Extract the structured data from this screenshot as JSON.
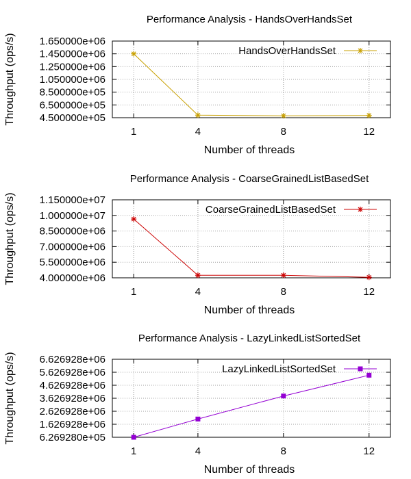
{
  "chart_data": [
    {
      "type": "line",
      "title": "Performance Analysis - HandsOverHandsSet",
      "xlabel": "Number of threads",
      "ylabel": "Throughput (ops/s)",
      "x": [
        1,
        4,
        8,
        12
      ],
      "x_tick_labels": [
        "1",
        "4",
        "8",
        "12"
      ],
      "y_tick_labels": [
        "1.650000e+06",
        "1.450000e+06",
        "1.250000e+06",
        "1.050000e+06",
        "8.500000e+05",
        "6.500000e+05",
        "4.500000e+05"
      ],
      "y_ticks": [
        1650000,
        1450000,
        1250000,
        1050000,
        850000,
        650000,
        450000
      ],
      "ylim": [
        450000,
        1650000
      ],
      "xlim": [
        0,
        13
      ],
      "grid": true,
      "legend_position": "top-right",
      "series": [
        {
          "name": "HandsOverHandsSet",
          "marker": "star",
          "color": "#c8a000",
          "values": [
            1450000,
            490000,
            480000,
            485000
          ]
        }
      ]
    },
    {
      "type": "line",
      "title": "Performance Analysis - CoarseGrainedListBasedSet",
      "xlabel": "Number of threads",
      "ylabel": "Throughput (ops/s)",
      "x": [
        1,
        4,
        8,
        12
      ],
      "x_tick_labels": [
        "1",
        "4",
        "8",
        "12"
      ],
      "y_tick_labels": [
        "1.150000e+07",
        "1.000000e+07",
        "8.500000e+06",
        "7.000000e+06",
        "5.500000e+06",
        "4.000000e+06"
      ],
      "y_ticks": [
        11500000,
        10000000,
        8500000,
        7000000,
        5500000,
        4000000
      ],
      "ylim": [
        4000000,
        11500000
      ],
      "xlim": [
        0,
        13
      ],
      "grid": true,
      "legend_position": "top-right",
      "series": [
        {
          "name": "CoarseGrainedListBasedSet",
          "marker": "star",
          "color": "#cc0000",
          "values": [
            9650000,
            4250000,
            4250000,
            4050000
          ]
        }
      ]
    },
    {
      "type": "line",
      "title": "Performance Analysis - LazyLinkedListSortedSet",
      "xlabel": "Number of threads",
      "ylabel": "Throughput (ops/s)",
      "x": [
        1,
        4,
        8,
        12
      ],
      "x_tick_labels": [
        "1",
        "4",
        "8",
        "12"
      ],
      "y_tick_labels": [
        "6.626928e+06",
        "5.626928e+06",
        "4.626928e+06",
        "3.626928e+06",
        "2.626928e+06",
        "1.626928e+06",
        "6.269280e+05"
      ],
      "y_ticks": [
        6626928,
        5626928,
        4626928,
        3626928,
        2626928,
        1626928,
        626928
      ],
      "ylim": [
        626928,
        6626928
      ],
      "xlim": [
        0,
        13
      ],
      "grid": true,
      "legend_position": "top-right",
      "series": [
        {
          "name": "LazyLinkedListSortedSet",
          "marker": "square",
          "color": "#9400d3",
          "values": [
            626928,
            2030000,
            3800000,
            5400000
          ]
        }
      ]
    }
  ]
}
